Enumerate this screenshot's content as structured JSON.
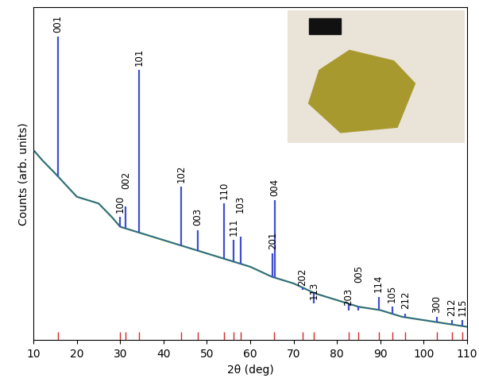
{
  "chart_data": {
    "type": "xrd",
    "x_label": "2θ (deg)",
    "y_label": "Counts (arb. units)",
    "xlim": [
      10,
      110
    ],
    "xticks": [
      10,
      20,
      30,
      40,
      50,
      60,
      70,
      80,
      90,
      100,
      110
    ],
    "ylim": [
      0,
      100
    ],
    "yticks": [],
    "tick_labels": "x",
    "grid": false,
    "series": [
      {
        "type": "line",
        "color": "#2e8b3e",
        "x": [
          10,
          12,
          15,
          20,
          25,
          28,
          30,
          35,
          40,
          45,
          50,
          55,
          60,
          65,
          70,
          75,
          80,
          85,
          90,
          95,
          100,
          105,
          110
        ],
        "values": [
          57,
          54,
          50,
          43,
          41,
          37,
          34,
          32,
          30,
          28,
          26,
          24,
          22,
          19,
          17,
          14,
          12,
          10,
          9,
          7,
          6,
          5,
          4
        ]
      },
      {
        "type": "peaks",
        "color": "#3f4fd0",
        "x": [
          15.6,
          30.0,
          31.3,
          34.4,
          44.0,
          47.9,
          53.9,
          56.1,
          57.7,
          65.2,
          65.7,
          72.0,
          74.7,
          82.7,
          85.0,
          89.6,
          92.7,
          95.8,
          103.0,
          106.5,
          109.0
        ],
        "values": [
          91,
          37,
          40,
          81,
          46,
          33,
          41,
          30,
          31,
          26,
          42,
          15,
          11,
          9,
          9,
          13,
          10,
          8,
          7,
          6,
          6
        ],
        "labels": [
          "001",
          "100",
          "002",
          "101",
          "102",
          "003",
          "110",
          "111",
          "103",
          "201",
          "004",
          "202",
          "113",
          "203",
          "005",
          "114",
          "105",
          "212",
          "300",
          "212",
          "115"
        ]
      },
      {
        "type": "stem",
        "color": "#d62728",
        "x": [
          15.6,
          30.0,
          31.3,
          34.4,
          44.0,
          47.9,
          53.9,
          56.1,
          57.7,
          65.5,
          72.0,
          74.7,
          82.7,
          85.0,
          89.6,
          92.7,
          95.8,
          103.0,
          106.5,
          109.0
        ],
        "values": [
          2.5,
          2.5,
          2.5,
          2.5,
          2.5,
          2.5,
          2.5,
          2.5,
          2.5,
          2.5,
          2.5,
          2.5,
          2.5,
          2.5,
          2.5,
          2.5,
          2.5,
          2.5,
          2.5,
          2.5
        ]
      }
    ]
  }
}
